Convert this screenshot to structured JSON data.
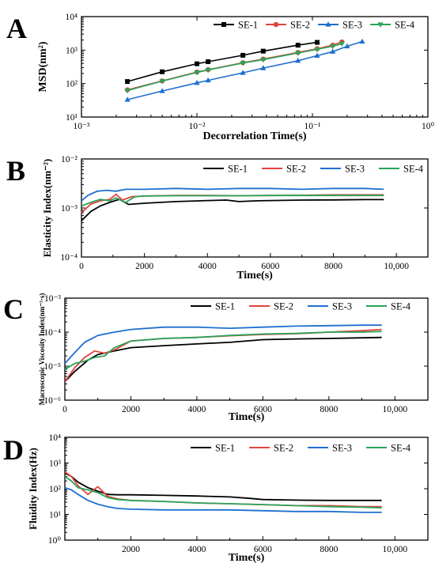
{
  "figure": {
    "panels": [
      "A",
      "B",
      "C",
      "D"
    ]
  },
  "colors": {
    "SE-1": "#000000",
    "SE-2": "#e0443a",
    "SE-3": "#1f6fd1",
    "SE-4": "#2aa35a"
  },
  "chart_data": [
    {
      "panel": "A",
      "type": "line",
      "xlabel": "Decorrelation Time(s)",
      "ylabel": "MSD(nm²)",
      "xscale": "log",
      "yscale": "log",
      "xlim": [
        0.001,
        1
      ],
      "ylim": [
        10,
        10000
      ],
      "xticks": [
        "10⁻³",
        "10⁻²",
        "10⁻¹",
        "10⁰"
      ],
      "yticks": [
        "10¹",
        "10²",
        "10³",
        "10⁴"
      ],
      "legend": "top-right",
      "series": [
        {
          "name": "SE-1",
          "marker": "square",
          "x": [
            0.0025,
            0.005,
            0.01,
            0.0125,
            0.025,
            0.0375,
            0.075,
            0.11
          ],
          "y": [
            115,
            225,
            390,
            450,
            700,
            930,
            1400,
            1700
          ]
        },
        {
          "name": "SE-2",
          "marker": "circle",
          "x": [
            0.0025,
            0.005,
            0.01,
            0.0125,
            0.025,
            0.0375,
            0.075,
            0.11,
            0.15,
            0.18
          ],
          "y": [
            65,
            120,
            220,
            260,
            420,
            540,
            850,
            1100,
            1400,
            1750
          ]
        },
        {
          "name": "SE-3",
          "marker": "triangle-up",
          "x": [
            0.0025,
            0.005,
            0.01,
            0.0125,
            0.025,
            0.0375,
            0.075,
            0.11,
            0.15,
            0.2,
            0.27
          ],
          "y": [
            33,
            60,
            105,
            125,
            210,
            290,
            480,
            680,
            900,
            1300,
            1800
          ]
        },
        {
          "name": "SE-4",
          "marker": "triangle-down",
          "x": [
            0.0025,
            0.005,
            0.01,
            0.0125,
            0.025,
            0.0375,
            0.075,
            0.11,
            0.15,
            0.18
          ],
          "y": [
            62,
            118,
            215,
            255,
            410,
            520,
            820,
            1050,
            1300,
            1550
          ]
        }
      ]
    },
    {
      "panel": "B",
      "type": "line",
      "xlabel": "Time(s)",
      "ylabel": "Elasticity Index(nm⁻²)",
      "xscale": "linear",
      "yscale": "log",
      "xlim": [
        0,
        11000
      ],
      "ylim": [
        0.0001,
        0.01
      ],
      "xticks": [
        "0",
        "2000",
        "4000",
        "6000",
        "8000",
        "10,000"
      ],
      "yticks": [
        "10⁻⁴",
        "10⁻³",
        "10⁻²"
      ],
      "legend": "top-right",
      "series": [
        {
          "name": "SE-1",
          "x": [
            0,
            300,
            600,
            900,
            1200,
            1500,
            2000,
            3000,
            4000,
            4600,
            5000,
            5600,
            6000,
            7000,
            8000,
            9000,
            9600
          ],
          "y": [
            0.00055,
            0.00085,
            0.0011,
            0.0013,
            0.0015,
            0.00118,
            0.00125,
            0.00135,
            0.00142,
            0.00145,
            0.00135,
            0.0014,
            0.00142,
            0.00145,
            0.00146,
            0.00148,
            0.00148
          ]
        },
        {
          "name": "SE-2",
          "x": [
            0,
            300,
            600,
            900,
            1100,
            1300,
            1600,
            2000,
            3000,
            4000,
            5000,
            6000,
            7000,
            8000,
            9000,
            9600
          ],
          "y": [
            0.0008,
            0.0012,
            0.0014,
            0.0015,
            0.0019,
            0.00145,
            0.0017,
            0.00175,
            0.0018,
            0.0018,
            0.00178,
            0.0018,
            0.00182,
            0.00185,
            0.00185,
            0.00185
          ]
        },
        {
          "name": "SE-3",
          "x": [
            0,
            200,
            500,
            800,
            1100,
            1400,
            2000,
            3000,
            4000,
            5000,
            6000,
            7000,
            8000,
            9000,
            9600
          ],
          "y": [
            0.0014,
            0.0018,
            0.0022,
            0.0023,
            0.0022,
            0.0024,
            0.0024,
            0.0025,
            0.0024,
            0.0025,
            0.0025,
            0.0024,
            0.0025,
            0.0025,
            0.0024
          ]
        },
        {
          "name": "SE-4",
          "x": [
            0,
            300,
            600,
            900,
            1100,
            1400,
            1700,
            2000,
            3000,
            4000,
            5000,
            6000,
            7000,
            8000,
            9000,
            9600
          ],
          "y": [
            0.0011,
            0.0013,
            0.0015,
            0.0014,
            0.0016,
            0.0013,
            0.0017,
            0.00175,
            0.00178,
            0.00178,
            0.00178,
            0.0018,
            0.0018,
            0.0018,
            0.0018,
            0.0018
          ]
        }
      ]
    },
    {
      "panel": "C",
      "type": "line",
      "xlabel": "Time(s)",
      "ylabel": "Macroscopic Viscosity Index(nm⁻²·s)",
      "xscale": "linear",
      "yscale": "log",
      "xlim": [
        0,
        11000
      ],
      "ylim": [
        1e-06,
        0.001
      ],
      "xticks": [
        "0",
        "2000",
        "4000",
        "6000",
        "8000",
        "10,000"
      ],
      "yticks": [
        "10⁻⁶",
        "10⁻⁵",
        "10⁻⁴",
        "10⁻³"
      ],
      "legend": "top-right",
      "series": [
        {
          "name": "SE-1",
          "x": [
            0,
            300,
            700,
            1000,
            1500,
            2000,
            3000,
            4000,
            5000,
            6000,
            7000,
            8000,
            9000,
            9600
          ],
          "y": [
            3.5e-06,
            7e-06,
            1.5e-05,
            2.2e-05,
            2.8e-05,
            3.5e-05,
            4e-05,
            4.5e-05,
            5e-05,
            6e-05,
            6.3e-05,
            6.5e-05,
            6.8e-05,
            7e-05
          ]
        },
        {
          "name": "SE-2",
          "x": [
            0,
            300,
            600,
            900,
            1200,
            1500,
            2000,
            3000,
            4000,
            5000,
            6000,
            7000,
            8000,
            9000,
            9600
          ],
          "y": [
            3.5e-06,
            9e-06,
            1.8e-05,
            2.8e-05,
            2.4e-05,
            3e-05,
            5.5e-05,
            6.5e-05,
            7e-05,
            7.8e-05,
            8.5e-05,
            9e-05,
            0.0001,
            0.00011,
            0.00012
          ]
        },
        {
          "name": "SE-3",
          "x": [
            0,
            300,
            600,
            1000,
            1500,
            2000,
            3000,
            4000,
            5000,
            6000,
            7000,
            8000,
            9000,
            9600
          ],
          "y": [
            1.2e-05,
            2.5e-05,
            5e-05,
            8e-05,
            0.0001,
            0.00012,
            0.00014,
            0.00014,
            0.00013,
            0.00014,
            0.00015,
            0.000155,
            0.00016,
            0.00016
          ]
        },
        {
          "name": "SE-4",
          "x": [
            0,
            300,
            600,
            900,
            1200,
            1500,
            2000,
            3000,
            4000,
            5000,
            6000,
            7000,
            8000,
            9000,
            9600
          ],
          "y": [
            8e-06,
            1.2e-05,
            1.4e-05,
            1.8e-05,
            2e-05,
            3.5e-05,
            5.5e-05,
            6.5e-05,
            7e-05,
            8e-05,
            8.8e-05,
            9.2e-05,
            0.0001,
            0.0001,
            0.000105
          ]
        }
      ]
    },
    {
      "panel": "D",
      "type": "line",
      "xlabel": "Time(s)",
      "ylabel": "Fluidity Index(Hz)",
      "xscale": "linear",
      "yscale": "log",
      "xlim": [
        0,
        11000
      ],
      "ylim": [
        1,
        10000
      ],
      "xticks": [
        "2000",
        "4000",
        "6000",
        "8000",
        "10,000"
      ],
      "yticks": [
        "10⁰",
        "10¹",
        "10²",
        "10³",
        "10⁴"
      ],
      "legend": "top-right",
      "series": [
        {
          "name": "SE-1",
          "x": [
            0,
            200,
            400,
            700,
            1000,
            1300,
            1600,
            2000,
            3000,
            4000,
            5000,
            5600,
            6000,
            7000,
            8000,
            9000,
            9600
          ],
          "y": [
            400,
            300,
            180,
            110,
            80,
            60,
            58,
            58,
            55,
            52,
            48,
            42,
            38,
            36,
            35,
            35,
            35
          ]
        },
        {
          "name": "SE-2",
          "x": [
            0,
            200,
            400,
            700,
            1000,
            1300,
            1600,
            2000,
            3000,
            4000,
            5000,
            6000,
            7000,
            8000,
            9000,
            9600
          ],
          "y": [
            450,
            300,
            130,
            60,
            120,
            50,
            40,
            35,
            32,
            28,
            26,
            24,
            22,
            22,
            20,
            20
          ]
        },
        {
          "name": "SE-3",
          "x": [
            0,
            200,
            400,
            700,
            1000,
            1300,
            1600,
            2000,
            3000,
            4000,
            5000,
            6000,
            7000,
            8000,
            9000,
            9600
          ],
          "y": [
            110,
            90,
            60,
            35,
            25,
            20,
            17,
            16,
            15,
            15,
            15,
            14,
            13,
            13,
            12,
            12
          ]
        },
        {
          "name": "SE-4",
          "x": [
            0,
            200,
            400,
            700,
            1000,
            1300,
            1600,
            2000,
            3000,
            4000,
            5000,
            6000,
            7000,
            8000,
            9000,
            9600
          ],
          "y": [
            300,
            200,
            110,
            90,
            70,
            45,
            38,
            35,
            32,
            28,
            26,
            24,
            22,
            20,
            19,
            18
          ]
        }
      ]
    }
  ]
}
